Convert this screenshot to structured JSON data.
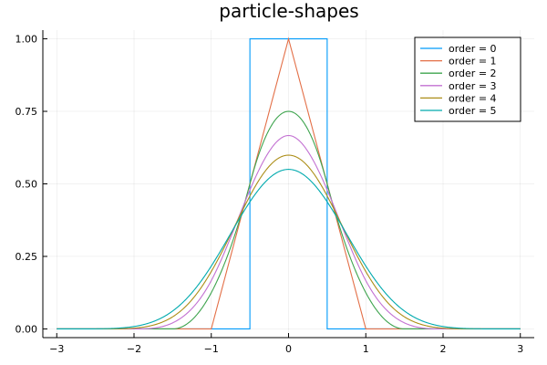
{
  "chart_data": {
    "type": "line",
    "title": "particle-shapes",
    "xlabel": "",
    "ylabel": "",
    "xlim": [
      -3,
      3
    ],
    "ylim": [
      0,
      1
    ],
    "xticks": [
      -3,
      -2,
      -1,
      0,
      1,
      2,
      3
    ],
    "yticks": [
      0.0,
      0.25,
      0.5,
      0.75,
      1.0
    ],
    "xtick_labels": [
      "−3",
      "−2",
      "−1",
      "0",
      "1",
      "2",
      "3"
    ],
    "ytick_labels": [
      "0.00",
      "0.25",
      "0.50",
      "0.75",
      "1.00"
    ],
    "grid": true,
    "legend_position": "top-right",
    "series": [
      {
        "name": "order = 0",
        "order": 0,
        "color": "#009AFA"
      },
      {
        "name": "order = 1",
        "order": 1,
        "color": "#E36F47"
      },
      {
        "name": "order = 2",
        "order": 2,
        "color": "#3EA44E"
      },
      {
        "name": "order = 3",
        "order": 3,
        "color": "#C371D2"
      },
      {
        "name": "order = 4",
        "order": 4,
        "color": "#AC8E18"
      },
      {
        "name": "order = 5",
        "order": 5,
        "color": "#00AAAE"
      }
    ]
  }
}
